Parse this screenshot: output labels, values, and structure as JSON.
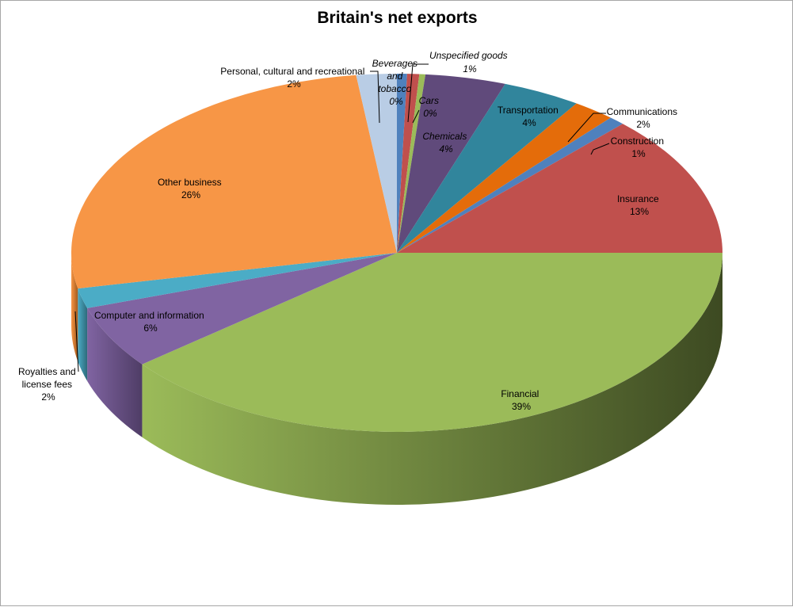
{
  "chart_data": {
    "type": "pie",
    "title": "Britain's net exports",
    "slices": [
      {
        "name": "Beverages and tobacco",
        "percent_label": "0%",
        "value": 0.5,
        "color": "#4f81bd",
        "side": "#2e4d73"
      },
      {
        "name": "Unspecified goods",
        "percent_label": "1%",
        "value": 0.6,
        "color": "#c0504d",
        "side": "#7a2f2d"
      },
      {
        "name": "Cars",
        "percent_label": "0%",
        "value": 0.3,
        "color": "#9bbb59",
        "side": "#5f7536"
      },
      {
        "name": "Chemicals",
        "percent_label": "4%",
        "value": 4.0,
        "color": "#604a7b",
        "side": "#3a2c4a"
      },
      {
        "name": "Transportation",
        "percent_label": "4%",
        "value": 3.9,
        "color": "#31859c",
        "side": "#1d5160"
      },
      {
        "name": "Communications",
        "percent_label": "2%",
        "value": 2.1,
        "color": "#e46c0a",
        "side": "#8a4106"
      },
      {
        "name": "Construction",
        "percent_label": "1%",
        "value": 0.8,
        "color": "#4f81bd",
        "side": "#2e4d73"
      },
      {
        "name": "Insurance",
        "percent_label": "13%",
        "value": 12.8,
        "color": "#c0504d",
        "side": "#7a2f2d"
      },
      {
        "name": "Financial",
        "percent_label": "39%",
        "value": 39.3,
        "color": "#9bbb59",
        "side": "#3d4a22"
      },
      {
        "name": "Computer and information",
        "percent_label": "6%",
        "value": 5.7,
        "color": "#8064a2",
        "side": "#4f3d66"
      },
      {
        "name": "Royalties and license fees",
        "percent_label": "2%",
        "value": 1.8,
        "color": "#4bacc6",
        "side": "#2d6a7a"
      },
      {
        "name": "Other business",
        "percent_label": "26%",
        "value": 26.2,
        "color": "#f79646",
        "side": "#a25a1c"
      },
      {
        "name": "Personal, cultural and recreational",
        "percent_label": "2%",
        "value": 2.0,
        "color": "#b9cde5",
        "side": "#7a8ea6"
      }
    ],
    "labels": {
      "beverages": [
        "Beverages",
        "and",
        "tobacco",
        "0%"
      ],
      "unspecified": [
        "Unspecified  goods",
        "1%"
      ],
      "cars": [
        "Cars",
        "0%"
      ],
      "chemicals": [
        "Chemicals",
        "4%"
      ],
      "transportation": [
        "Transportation",
        "4%"
      ],
      "communications": [
        "Communications",
        "2%"
      ],
      "construction": [
        "Construction",
        "1%"
      ],
      "insurance": [
        "Insurance",
        "13%"
      ],
      "financial": [
        "Financial",
        "39%"
      ],
      "computer": [
        "Computer  and information",
        "6%"
      ],
      "royalties": [
        "Royalties and",
        "license fees",
        "2%"
      ],
      "other": [
        "Other business",
        "26%"
      ],
      "personal": [
        "Personal, cultural and recreational",
        "2%"
      ]
    }
  }
}
